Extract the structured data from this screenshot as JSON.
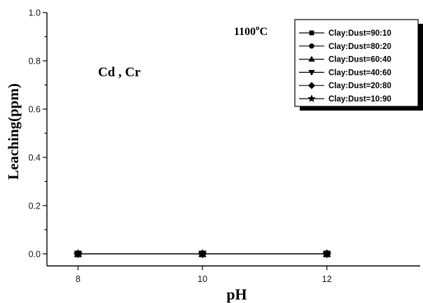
{
  "chart_data": {
    "type": "line",
    "xlabel": "pH",
    "ylabel": "Leaching(ppm)",
    "xlim": [
      7.5,
      13.5
    ],
    "ylim": [
      -0.05,
      1.0
    ],
    "x_ticks": [
      8,
      10,
      12
    ],
    "y_ticks": [
      0.0,
      0.2,
      0.4,
      0.6,
      0.8,
      1.0
    ],
    "y_tick_labels": [
      "0.0",
      "0.2",
      "0.4",
      "0.6",
      "0.8",
      "1.0"
    ],
    "x": [
      8,
      10,
      12
    ],
    "series": [
      {
        "name": "Clay:Dust=90:10",
        "marker": "square",
        "values": [
          0,
          0,
          0
        ]
      },
      {
        "name": "Clay:Dust=80:20",
        "marker": "circle",
        "values": [
          0,
          0,
          0
        ]
      },
      {
        "name": "Clay:Dust=60:40",
        "marker": "triangle-up",
        "values": [
          0,
          0,
          0
        ]
      },
      {
        "name": "Clay:Dust=40:60",
        "marker": "triangle-down",
        "values": [
          0,
          0,
          0
        ]
      },
      {
        "name": "Clay:Dust=20:80",
        "marker": "diamond",
        "values": [
          0,
          0,
          0
        ]
      },
      {
        "name": "Clay:Dust=10:90",
        "marker": "star",
        "values": [
          0,
          0,
          0
        ]
      }
    ],
    "annotations": {
      "temperature_main": "1100",
      "temperature_sup": "o",
      "temperature_unit": "C",
      "elements": "Cd , Cr"
    },
    "legend_position": "top-right",
    "grid": false
  }
}
